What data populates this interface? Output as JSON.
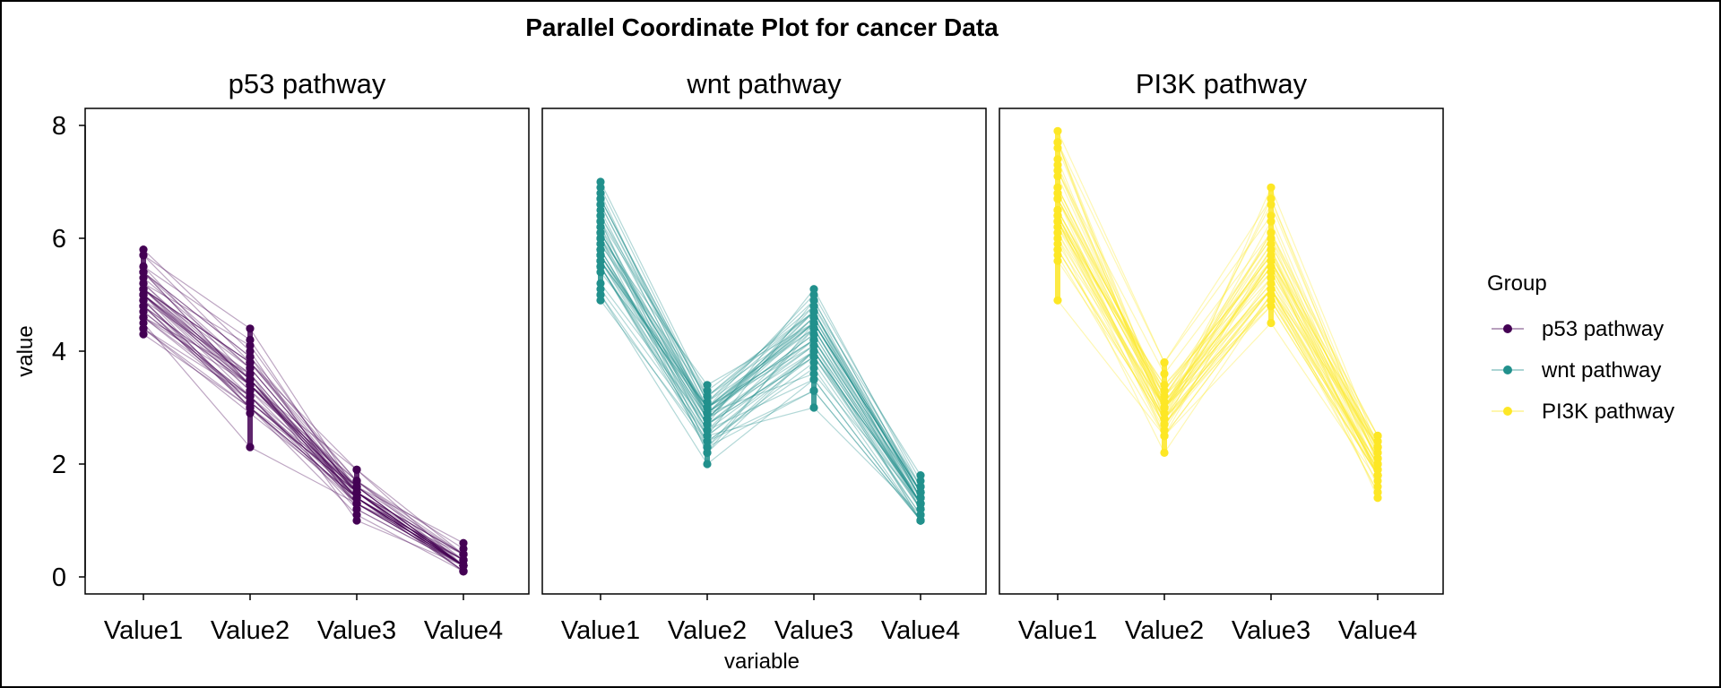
{
  "chart_data": {
    "type": "line",
    "title": "Parallel Coordinate Plot for cancer Data",
    "xlabel": "variable",
    "ylabel": "value",
    "ylim": [
      -0.3,
      8.3
    ],
    "yticks": [
      0,
      2,
      4,
      6,
      8
    ],
    "categories": [
      "Value1",
      "Value2",
      "Value3",
      "Value4"
    ],
    "legend": {
      "title": "Group",
      "placement": "right",
      "items": [
        {
          "label": "p53 pathway",
          "color": "#440154"
        },
        {
          "label": "wnt pathway",
          "color": "#21908C"
        },
        {
          "label": "PI3K pathway",
          "color": "#FDE725"
        }
      ]
    },
    "panels": [
      {
        "name": "p53 pathway",
        "color": "#440154",
        "min": [
          4.3,
          2.3,
          1.0,
          0.1
        ],
        "max": [
          5.8,
          4.4,
          1.9,
          0.6
        ],
        "series": [
          [
            5.1,
            3.5,
            1.4,
            0.2
          ],
          [
            4.9,
            3.0,
            1.4,
            0.2
          ],
          [
            4.7,
            3.2,
            1.3,
            0.2
          ],
          [
            4.6,
            3.1,
            1.5,
            0.2
          ],
          [
            5.0,
            3.6,
            1.4,
            0.2
          ],
          [
            5.4,
            3.9,
            1.7,
            0.4
          ],
          [
            4.6,
            3.4,
            1.4,
            0.3
          ],
          [
            5.0,
            3.4,
            1.5,
            0.2
          ],
          [
            4.4,
            2.9,
            1.4,
            0.2
          ],
          [
            4.9,
            3.1,
            1.5,
            0.1
          ],
          [
            5.4,
            3.7,
            1.5,
            0.2
          ],
          [
            4.8,
            3.4,
            1.6,
            0.2
          ],
          [
            4.8,
            3.0,
            1.4,
            0.1
          ],
          [
            4.3,
            3.0,
            1.1,
            0.1
          ],
          [
            5.8,
            4.0,
            1.2,
            0.2
          ],
          [
            5.7,
            4.4,
            1.5,
            0.4
          ],
          [
            5.4,
            3.9,
            1.3,
            0.4
          ],
          [
            5.1,
            3.5,
            1.4,
            0.3
          ],
          [
            5.7,
            3.8,
            1.7,
            0.3
          ],
          [
            5.1,
            3.8,
            1.5,
            0.3
          ],
          [
            5.4,
            3.4,
            1.7,
            0.2
          ],
          [
            5.1,
            3.7,
            1.5,
            0.4
          ],
          [
            4.6,
            3.6,
            1.0,
            0.2
          ],
          [
            5.1,
            3.3,
            1.7,
            0.5
          ],
          [
            4.8,
            3.4,
            1.9,
            0.2
          ],
          [
            5.0,
            3.0,
            1.6,
            0.2
          ],
          [
            5.0,
            3.4,
            1.6,
            0.4
          ],
          [
            5.2,
            3.5,
            1.5,
            0.2
          ],
          [
            5.2,
            3.4,
            1.4,
            0.2
          ],
          [
            4.7,
            3.2,
            1.6,
            0.2
          ],
          [
            4.8,
            3.1,
            1.6,
            0.2
          ],
          [
            5.4,
            3.4,
            1.5,
            0.4
          ],
          [
            5.2,
            4.1,
            1.5,
            0.1
          ],
          [
            5.5,
            4.2,
            1.4,
            0.2
          ],
          [
            4.9,
            3.1,
            1.5,
            0.2
          ],
          [
            5.0,
            3.2,
            1.2,
            0.2
          ],
          [
            5.5,
            3.5,
            1.3,
            0.2
          ],
          [
            4.9,
            3.6,
            1.4,
            0.1
          ],
          [
            4.4,
            3.0,
            1.3,
            0.2
          ],
          [
            5.1,
            3.4,
            1.5,
            0.2
          ],
          [
            5.0,
            3.5,
            1.3,
            0.3
          ],
          [
            4.5,
            2.3,
            1.3,
            0.3
          ],
          [
            4.4,
            3.2,
            1.3,
            0.2
          ],
          [
            5.0,
            3.5,
            1.6,
            0.6
          ],
          [
            5.1,
            3.8,
            1.9,
            0.4
          ],
          [
            4.8,
            3.0,
            1.4,
            0.3
          ],
          [
            5.1,
            3.8,
            1.6,
            0.2
          ],
          [
            4.6,
            3.2,
            1.4,
            0.2
          ],
          [
            5.3,
            3.7,
            1.5,
            0.2
          ],
          [
            5.0,
            3.3,
            1.4,
            0.2
          ]
        ]
      },
      {
        "name": "wnt pathway",
        "color": "#21908C",
        "min": [
          4.9,
          2.0,
          3.0,
          1.0
        ],
        "max": [
          7.0,
          3.4,
          5.1,
          1.8
        ],
        "series": [
          [
            7.0,
            3.2,
            4.7,
            1.4
          ],
          [
            6.4,
            3.2,
            4.5,
            1.5
          ],
          [
            6.9,
            3.1,
            4.9,
            1.5
          ],
          [
            5.5,
            2.3,
            4.0,
            1.3
          ],
          [
            6.5,
            2.8,
            4.6,
            1.5
          ],
          [
            5.7,
            2.8,
            4.5,
            1.3
          ],
          [
            6.3,
            3.3,
            4.7,
            1.6
          ],
          [
            4.9,
            2.4,
            3.3,
            1.0
          ],
          [
            6.6,
            2.9,
            4.6,
            1.3
          ],
          [
            5.2,
            2.7,
            3.9,
            1.4
          ],
          [
            5.0,
            2.0,
            3.5,
            1.0
          ],
          [
            5.9,
            3.0,
            4.2,
            1.5
          ],
          [
            6.0,
            2.2,
            4.0,
            1.0
          ],
          [
            6.1,
            2.9,
            4.7,
            1.4
          ],
          [
            5.6,
            2.9,
            3.6,
            1.3
          ],
          [
            6.7,
            3.1,
            4.4,
            1.4
          ],
          [
            5.6,
            3.0,
            4.5,
            1.5
          ],
          [
            5.8,
            2.7,
            4.1,
            1.0
          ],
          [
            6.2,
            2.2,
            4.5,
            1.5
          ],
          [
            5.6,
            2.5,
            3.9,
            1.1
          ],
          [
            5.9,
            3.2,
            4.8,
            1.8
          ],
          [
            6.1,
            2.8,
            4.0,
            1.3
          ],
          [
            6.3,
            2.5,
            4.9,
            1.5
          ],
          [
            6.1,
            2.8,
            4.7,
            1.2
          ],
          [
            6.4,
            2.9,
            4.3,
            1.3
          ],
          [
            6.6,
            3.0,
            4.4,
            1.4
          ],
          [
            6.8,
            2.8,
            4.8,
            1.4
          ],
          [
            6.7,
            3.0,
            5.0,
            1.7
          ],
          [
            6.0,
            2.9,
            4.5,
            1.5
          ],
          [
            5.7,
            2.6,
            3.5,
            1.0
          ],
          [
            5.5,
            2.4,
            3.8,
            1.1
          ],
          [
            5.5,
            2.4,
            3.7,
            1.0
          ],
          [
            5.8,
            2.7,
            3.9,
            1.2
          ],
          [
            6.0,
            2.7,
            5.1,
            1.6
          ],
          [
            5.4,
            3.0,
            4.5,
            1.5
          ],
          [
            6.0,
            3.4,
            4.5,
            1.6
          ],
          [
            6.7,
            3.1,
            4.7,
            1.5
          ],
          [
            6.3,
            2.3,
            4.4,
            1.3
          ],
          [
            5.6,
            3.0,
            4.1,
            1.3
          ],
          [
            5.5,
            2.5,
            4.0,
            1.3
          ],
          [
            5.5,
            2.6,
            4.4,
            1.2
          ],
          [
            6.1,
            3.0,
            4.6,
            1.4
          ],
          [
            5.8,
            2.6,
            4.0,
            1.2
          ],
          [
            5.0,
            2.3,
            3.3,
            1.0
          ],
          [
            5.6,
            2.7,
            4.2,
            1.3
          ],
          [
            5.7,
            3.0,
            4.2,
            1.2
          ],
          [
            5.7,
            2.9,
            4.2,
            1.3
          ],
          [
            6.2,
            2.9,
            4.3,
            1.3
          ],
          [
            5.1,
            2.5,
            3.0,
            1.1
          ],
          [
            5.7,
            2.8,
            4.1,
            1.3
          ]
        ]
      },
      {
        "name": "PI3K pathway",
        "color": "#FDE725",
        "min": [
          4.9,
          2.2,
          4.5,
          1.4
        ],
        "max": [
          7.9,
          3.8,
          6.9,
          2.5
        ],
        "series": [
          [
            6.3,
            3.3,
            6.0,
            2.5
          ],
          [
            5.8,
            2.7,
            5.1,
            1.9
          ],
          [
            7.1,
            3.0,
            5.9,
            2.1
          ],
          [
            6.3,
            2.9,
            5.6,
            1.8
          ],
          [
            6.5,
            3.0,
            5.8,
            2.2
          ],
          [
            7.6,
            3.0,
            6.6,
            2.1
          ],
          [
            4.9,
            2.5,
            4.5,
            1.7
          ],
          [
            7.3,
            2.9,
            6.3,
            1.8
          ],
          [
            6.7,
            2.5,
            5.8,
            1.8
          ],
          [
            7.2,
            3.6,
            6.1,
            2.5
          ],
          [
            6.5,
            3.2,
            5.1,
            2.0
          ],
          [
            6.4,
            2.7,
            5.3,
            1.9
          ],
          [
            6.8,
            3.0,
            5.5,
            2.1
          ],
          [
            5.7,
            2.5,
            5.0,
            2.0
          ],
          [
            5.8,
            2.8,
            5.1,
            2.4
          ],
          [
            6.4,
            3.2,
            5.3,
            2.3
          ],
          [
            6.5,
            3.0,
            5.5,
            1.8
          ],
          [
            7.7,
            3.8,
            6.7,
            2.2
          ],
          [
            7.7,
            2.6,
            6.9,
            2.3
          ],
          [
            6.0,
            2.2,
            5.0,
            1.5
          ],
          [
            6.9,
            3.2,
            5.7,
            2.3
          ],
          [
            5.6,
            2.8,
            4.9,
            2.0
          ],
          [
            7.7,
            2.8,
            6.7,
            2.0
          ],
          [
            6.3,
            2.7,
            4.9,
            1.8
          ],
          [
            6.7,
            3.3,
            5.7,
            2.1
          ],
          [
            7.2,
            3.2,
            6.0,
            1.8
          ],
          [
            6.2,
            2.8,
            4.8,
            1.8
          ],
          [
            6.1,
            3.0,
            4.9,
            1.8
          ],
          [
            6.4,
            2.8,
            5.6,
            2.1
          ],
          [
            7.2,
            3.0,
            5.8,
            1.6
          ],
          [
            7.4,
            2.8,
            6.1,
            1.9
          ],
          [
            7.9,
            3.8,
            6.4,
            2.0
          ],
          [
            6.4,
            2.8,
            5.6,
            2.2
          ],
          [
            6.3,
            2.8,
            5.1,
            1.5
          ],
          [
            6.1,
            2.6,
            5.6,
            1.4
          ],
          [
            7.7,
            3.0,
            6.1,
            2.3
          ],
          [
            6.3,
            3.4,
            5.6,
            2.4
          ],
          [
            6.4,
            3.1,
            5.5,
            1.8
          ],
          [
            6.0,
            3.0,
            4.8,
            1.8
          ],
          [
            6.9,
            3.1,
            5.4,
            2.1
          ],
          [
            6.7,
            3.1,
            5.6,
            2.4
          ],
          [
            6.9,
            3.1,
            5.1,
            2.3
          ],
          [
            5.8,
            2.7,
            5.1,
            1.9
          ],
          [
            6.8,
            3.2,
            5.9,
            2.3
          ],
          [
            6.7,
            3.3,
            5.7,
            2.5
          ],
          [
            6.7,
            3.0,
            5.2,
            2.3
          ],
          [
            6.3,
            2.5,
            5.0,
            1.9
          ],
          [
            6.5,
            3.0,
            5.2,
            2.0
          ],
          [
            6.2,
            3.4,
            5.4,
            2.3
          ],
          [
            5.9,
            3.0,
            5.1,
            1.8
          ]
        ]
      }
    ]
  }
}
